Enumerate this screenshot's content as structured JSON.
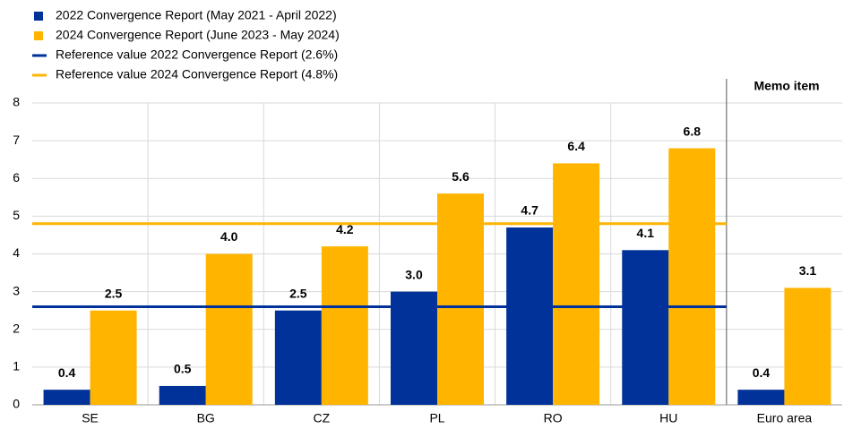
{
  "chart_data": {
    "type": "bar",
    "categories": [
      "SE",
      "BG",
      "CZ",
      "PL",
      "RO",
      "HU",
      "Euro area"
    ],
    "series": [
      {
        "name": "2022 Convergence Report (May 2021 - April 2022)",
        "color": "#003299",
        "values": [
          0.4,
          0.5,
          2.5,
          3.0,
          4.7,
          4.1,
          0.4
        ],
        "value_labels": [
          "0.4",
          "0.5",
          "2.5",
          "3.0",
          "4.7",
          "4.1",
          "0.4"
        ]
      },
      {
        "name": "2024 Convergence Report (June 2023 - May 2024)",
        "color": "#ffb400",
        "values": [
          2.5,
          4.0,
          4.2,
          5.6,
          6.4,
          6.8,
          3.1
        ],
        "value_labels": [
          "2.5",
          "4.0",
          "4.2",
          "5.6",
          "6.4",
          "6.8",
          "3.1"
        ]
      }
    ],
    "reference_lines": [
      {
        "name": "Reference value 2022 Convergence Report (2.6%)",
        "value": 2.6,
        "color": "#003299"
      },
      {
        "name": "Reference value 2024 Convergence Report (4.8%)",
        "value": 4.8,
        "color": "#ffb400"
      }
    ],
    "memo_label": "Memo item",
    "ylim": [
      0,
      8
    ],
    "yticks": [
      0,
      1,
      2,
      3,
      4,
      5,
      6,
      7,
      8
    ],
    "grid": true
  }
}
